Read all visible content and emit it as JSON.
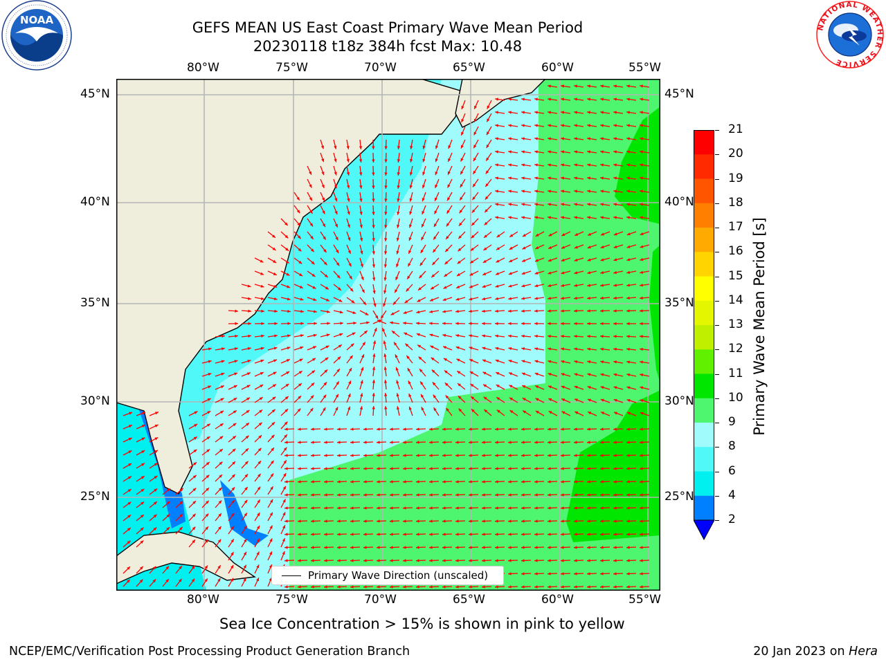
{
  "title_line1": "GEFS MEAN US East Coast Primary Wave Mean Period",
  "title_line2": "20230118 t18z 384h fcst   Max: 10.48",
  "lon_labels": [
    "80°W",
    "75°W",
    "70°W",
    "65°W",
    "60°W",
    "55°W"
  ],
  "lat_labels": [
    "45°N",
    "40°N",
    "35°N",
    "30°N",
    "25°N"
  ],
  "colorbar": {
    "title": "Primary Wave Mean Period [s]",
    "levels": [
      "21",
      "20",
      "19",
      "18",
      "17",
      "16",
      "15",
      "14",
      "13",
      "12",
      "11",
      "10",
      "9",
      "8",
      "6",
      "4",
      "2"
    ],
    "colors": [
      "#ff0000",
      "#ff2a00",
      "#ff5500",
      "#ff7f00",
      "#ffaa00",
      "#ffd400",
      "#ffff00",
      "#e4f700",
      "#c0f000",
      "#60f000",
      "#00e600",
      "#4ef56e",
      "#a0fcfc",
      "#50f8f8",
      "#00f0f0",
      "#0080ff",
      "#0000ff"
    ]
  },
  "legend": {
    "label": "Primary Wave Direction (unscaled)"
  },
  "note": "Sea Ice Concentration > 15% is shown in pink to yellow",
  "footer": {
    "left": "NCEP/EMC/Verification Post Processing Product Generation Branch",
    "date": "20 Jan 2023 on",
    "machine": "Hera"
  },
  "logos": {
    "noaa": "NOAA",
    "nws_ring": "NATIONAL WEATHER SERVICE"
  },
  "map_colors": {
    "land": "#efeedc",
    "grid": "#b4b4b4",
    "arrow": "#ff0000"
  }
}
